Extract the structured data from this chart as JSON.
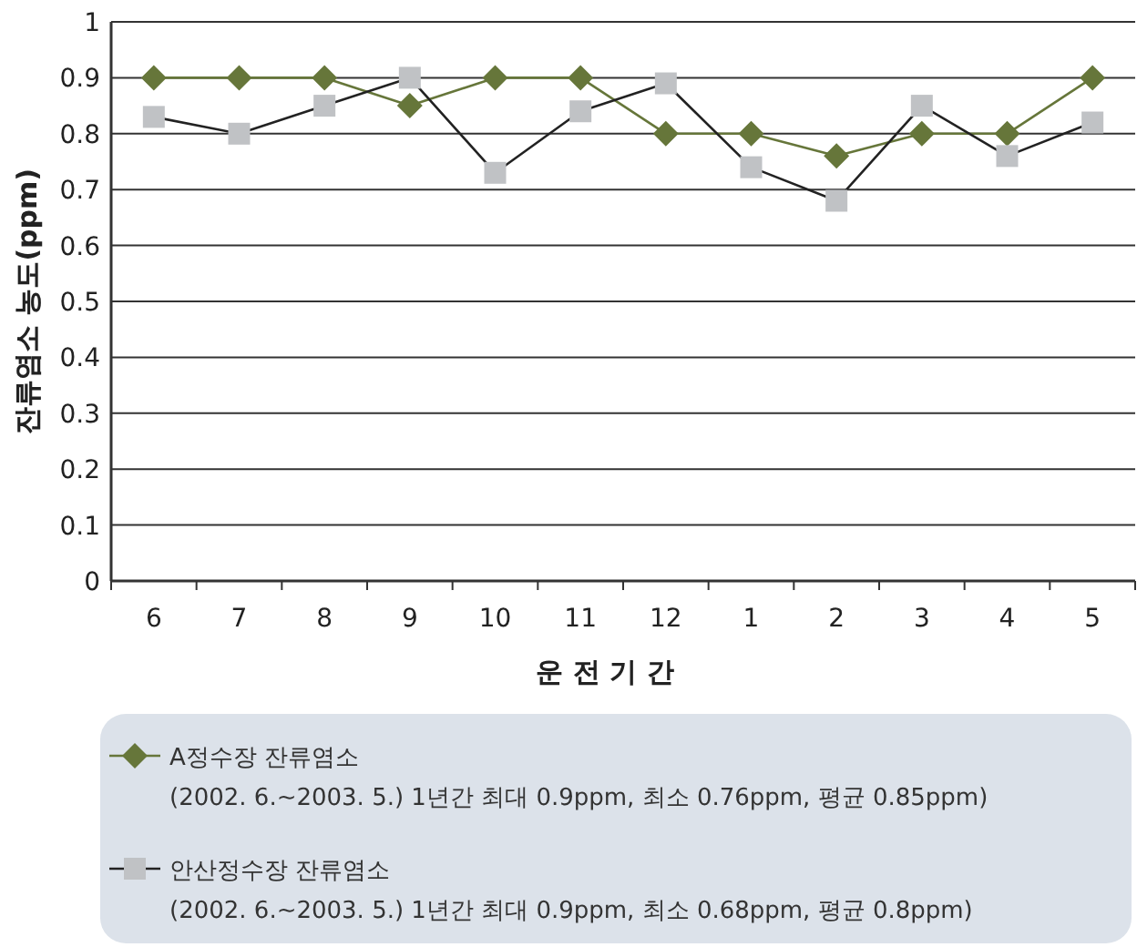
{
  "chart_data": {
    "type": "line",
    "xlabel": "운 전 기 간",
    "ylabel": "잔류염소 농도(ppm)",
    "categories": [
      "6",
      "7",
      "8",
      "9",
      "10",
      "11",
      "12",
      "1",
      "2",
      "3",
      "4",
      "5"
    ],
    "ylim": [
      0,
      1
    ],
    "yticks": [
      0,
      0.1,
      0.2,
      0.3,
      0.4,
      0.5,
      0.6,
      0.7,
      0.8,
      0.9,
      1
    ],
    "grid": "y",
    "legend": "bottom",
    "series": [
      {
        "name": "A정수장 잔류염소",
        "color": "#66763a",
        "marker": "diamond",
        "values": [
          0.9,
          0.9,
          0.9,
          0.85,
          0.9,
          0.9,
          0.8,
          0.8,
          0.76,
          0.8,
          0.8,
          0.9
        ]
      },
      {
        "name": "안산정수장 잔류염소",
        "color": "#c0c2c5",
        "marker": "square",
        "values": [
          0.83,
          0.8,
          0.85,
          0.9,
          0.73,
          0.84,
          0.89,
          0.74,
          0.68,
          0.85,
          0.76,
          0.82
        ]
      }
    ],
    "annotations": [
      "(2002. 6.~2003. 5.) 1년간 최대 0.9ppm, 최소 0.76ppm, 평균 0.85ppm)",
      "(2002. 6.~2003. 5.) 1년간 최대 0.9ppm, 최소 0.68ppm, 평균 0.8ppm)"
    ]
  }
}
